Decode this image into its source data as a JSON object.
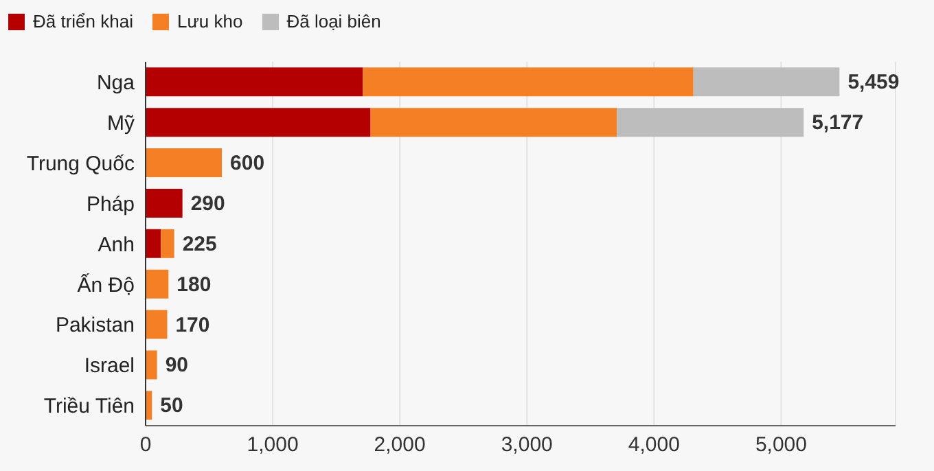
{
  "chart_data": {
    "type": "bar",
    "orientation": "horizontal",
    "stacked": true,
    "categories": [
      "Nga",
      "Mỹ",
      "Trung Quốc",
      "Pháp",
      "Anh",
      "Ấn Độ",
      "Pakistan",
      "Israel",
      "Triều Tiên"
    ],
    "series": [
      {
        "name": "Đã triển khai",
        "color": "#b50000",
        "values": [
          1710,
          1770,
          0,
          290,
          120,
          0,
          0,
          0,
          0
        ]
      },
      {
        "name": "Lưu kho",
        "color": "#f47f24",
        "values": [
          2600,
          1938,
          600,
          0,
          105,
          180,
          170,
          90,
          50
        ]
      },
      {
        "name": "Đã loại biên",
        "color": "#bdbdbd",
        "values": [
          1149,
          1469,
          0,
          0,
          0,
          0,
          0,
          0,
          0
        ]
      }
    ],
    "totals": [
      "5,459",
      "5,177",
      "600",
      "290",
      "225",
      "180",
      "170",
      "90",
      "50"
    ],
    "xlim": [
      0,
      5900
    ],
    "xticks": [
      {
        "value": 0,
        "label": "0"
      },
      {
        "value": 1000,
        "label": "1,000"
      },
      {
        "value": 2000,
        "label": "2,000"
      },
      {
        "value": 3000,
        "label": "3,000"
      },
      {
        "value": 4000,
        "label": "4,000"
      },
      {
        "value": 5000,
        "label": "5,000"
      }
    ],
    "grid": "x",
    "legend": "top left"
  }
}
